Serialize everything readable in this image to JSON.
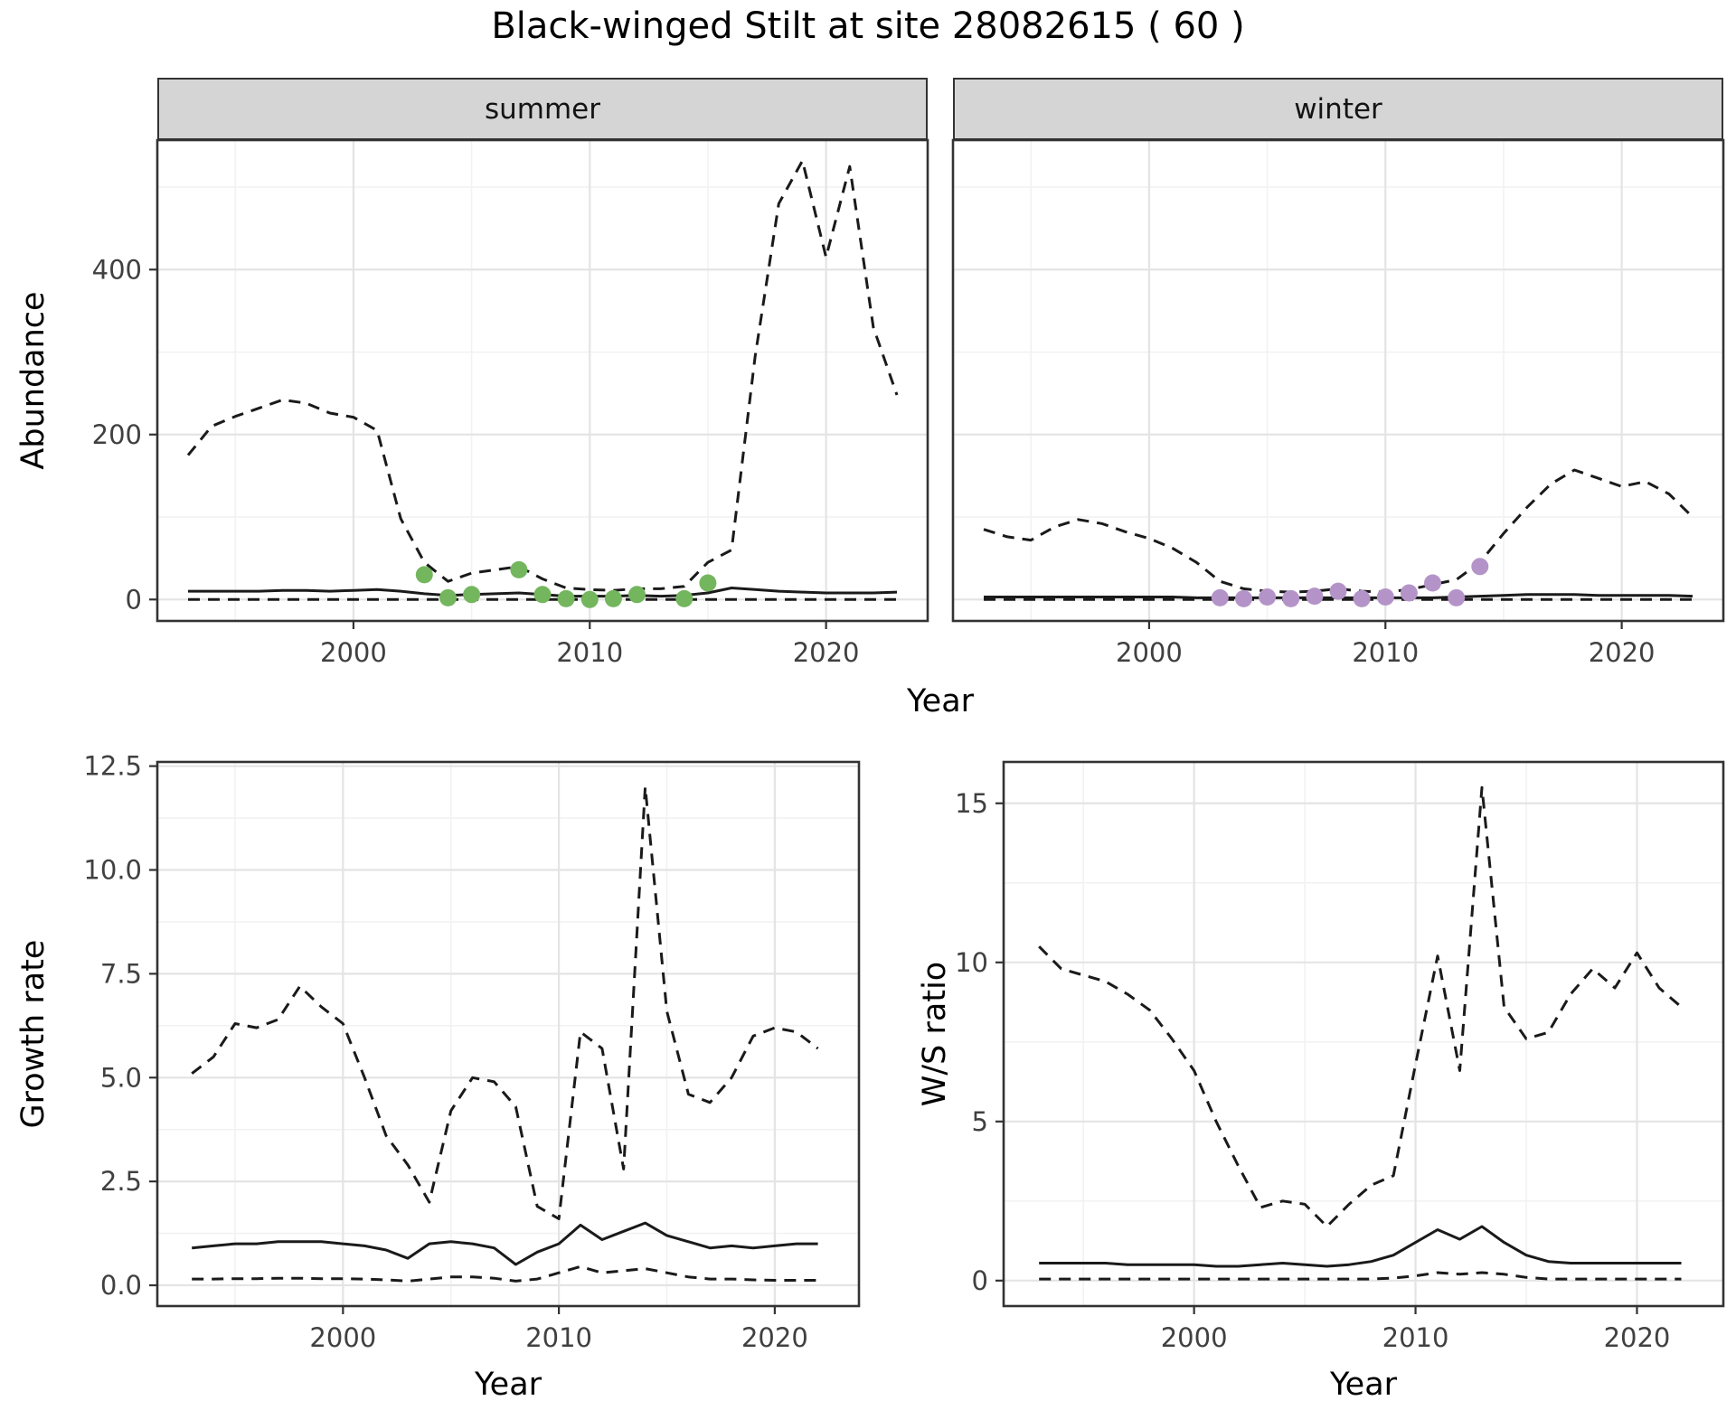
{
  "title": "Black-winged Stilt at site 28082615 ( 60 )",
  "colors": {
    "line": "#1a1a1a",
    "grid_major": "#e4e4e4",
    "grid_minor": "#f2f2f2",
    "panel_border": "#333333",
    "strip_bg": "#d5d5d5",
    "tick_text": "#404040",
    "summer_point": "#74b65e",
    "winter_point": "#b494c8"
  },
  "chart_data": [
    {
      "id": "abundance",
      "type": "line",
      "title": "",
      "xlabel": "Year",
      "ylabel": "Abundance",
      "xlim": [
        1991.7,
        2024.3
      ],
      "ylim": [
        -26,
        557
      ],
      "xticks": [
        2000,
        2010,
        2020
      ],
      "xtick_labels": [
        "2000",
        "2010",
        "2020"
      ],
      "yticks": [
        0,
        200,
        400
      ],
      "ytick_labels": [
        "0",
        "200",
        "400"
      ],
      "grid": true,
      "legend": "none",
      "facets": [
        {
          "label": "summer",
          "point_color": "#74b65e",
          "series": [
            {
              "name": "upper-ci",
              "style": "dashed",
              "x": [
                1993,
                1994,
                1995,
                1996,
                1997,
                1998,
                1999,
                2000,
                2001,
                2002,
                2003,
                2004,
                2005,
                2006,
                2007,
                2008,
                2009,
                2010,
                2011,
                2012,
                2013,
                2014,
                2015,
                2016,
                2017,
                2018,
                2019,
                2020,
                2021,
                2022,
                2023
              ],
              "y": [
                175,
                210,
                222,
                232,
                242,
                238,
                226,
                221,
                205,
                98,
                45,
                22,
                32,
                36,
                40,
                25,
                14,
                12,
                11,
                13,
                13,
                16,
                45,
                60,
                295,
                480,
                532,
                415,
                525,
                330,
                248
              ]
            },
            {
              "name": "median",
              "style": "solid",
              "x": [
                1993,
                1994,
                1995,
                1996,
                1997,
                1998,
                1999,
                2000,
                2001,
                2002,
                2003,
                2004,
                2005,
                2006,
                2007,
                2008,
                2009,
                2010,
                2011,
                2012,
                2013,
                2014,
                2015,
                2016,
                2017,
                2018,
                2019,
                2020,
                2021,
                2022,
                2023
              ],
              "y": [
                10,
                10,
                10,
                10,
                11,
                11,
                10,
                11,
                12,
                10,
                7,
                5,
                6,
                7,
                8,
                6,
                4,
                4,
                4,
                5,
                4,
                5,
                8,
                14,
                12,
                10,
                9,
                8,
                8,
                8,
                9
              ]
            },
            {
              "name": "lower-ci",
              "style": "dashed",
              "x": [
                1993,
                1994,
                1995,
                1996,
                1997,
                1998,
                1999,
                2000,
                2001,
                2002,
                2003,
                2004,
                2005,
                2006,
                2007,
                2008,
                2009,
                2010,
                2011,
                2012,
                2013,
                2014,
                2015,
                2016,
                2017,
                2018,
                2019,
                2020,
                2021,
                2022,
                2023
              ],
              "y": [
                0,
                0,
                0,
                0,
                0,
                0,
                0,
                0,
                0,
                0,
                0,
                0,
                0,
                0,
                0,
                0,
                0,
                0,
                0,
                0,
                0,
                0,
                0,
                0,
                0,
                0,
                0,
                0,
                0,
                0,
                0
              ]
            }
          ],
          "points": {
            "x": [
              2003,
              2004,
              2005,
              2007,
              2008,
              2009,
              2010,
              2011,
              2012,
              2014,
              2015
            ],
            "y": [
              30,
              2,
              6,
              36,
              6,
              1,
              0,
              1,
              6,
              1,
              20
            ]
          }
        },
        {
          "label": "winter",
          "point_color": "#b494c8",
          "series": [
            {
              "name": "upper-ci",
              "style": "dashed",
              "x": [
                1993,
                1994,
                1995,
                1996,
                1997,
                1998,
                1999,
                2000,
                2001,
                2002,
                2003,
                2004,
                2005,
                2006,
                2007,
                2008,
                2009,
                2010,
                2011,
                2012,
                2013,
                2014,
                2015,
                2016,
                2017,
                2018,
                2019,
                2020,
                2021,
                2022,
                2023
              ],
              "y": [
                85,
                76,
                72,
                88,
                97,
                92,
                82,
                74,
                62,
                45,
                22,
                13,
                10,
                9,
                10,
                13,
                10,
                9,
                12,
                18,
                24,
                45,
                80,
                112,
                140,
                157,
                147,
                137,
                143,
                128,
                100
              ]
            },
            {
              "name": "median",
              "style": "solid",
              "x": [
                1993,
                1994,
                1995,
                1996,
                1997,
                1998,
                1999,
                2000,
                2001,
                2002,
                2003,
                2004,
                2005,
                2006,
                2007,
                2008,
                2009,
                2010,
                2011,
                2012,
                2013,
                2014,
                2015,
                2016,
                2017,
                2018,
                2019,
                2020,
                2021,
                2022,
                2023
              ],
              "y": [
                3,
                3,
                3,
                3,
                3,
                3,
                3,
                3,
                3,
                2,
                2,
                2,
                2,
                2,
                2,
                2,
                2,
                2,
                2,
                2,
                3,
                4,
                5,
                6,
                6,
                6,
                5,
                5,
                5,
                5,
                4
              ]
            },
            {
              "name": "lower-ci",
              "style": "dashed",
              "x": [
                1993,
                1994,
                1995,
                1996,
                1997,
                1998,
                1999,
                2000,
                2001,
                2002,
                2003,
                2004,
                2005,
                2006,
                2007,
                2008,
                2009,
                2010,
                2011,
                2012,
                2013,
                2014,
                2015,
                2016,
                2017,
                2018,
                2019,
                2020,
                2021,
                2022,
                2023
              ],
              "y": [
                0,
                0,
                0,
                0,
                0,
                0,
                0,
                0,
                0,
                0,
                0,
                0,
                0,
                0,
                0,
                0,
                0,
                0,
                0,
                0,
                0,
                0,
                0,
                0,
                0,
                0,
                0,
                0,
                0,
                0,
                0
              ]
            }
          ],
          "points": {
            "x": [
              2003,
              2004,
              2005,
              2006,
              2007,
              2008,
              2009,
              2010,
              2011,
              2012,
              2013,
              2014
            ],
            "y": [
              2,
              1,
              3,
              1,
              4,
              10,
              1,
              3,
              8,
              20,
              2,
              40
            ]
          }
        }
      ]
    },
    {
      "id": "growth_rate",
      "type": "line",
      "title": "",
      "xlabel": "Year",
      "ylabel": "Growth rate",
      "xlim": [
        1991.4,
        2023.9
      ],
      "ylim": [
        -0.5,
        12.6
      ],
      "xticks": [
        2000,
        2010,
        2020
      ],
      "xtick_labels": [
        "2000",
        "2010",
        "2020"
      ],
      "yticks": [
        0,
        2.5,
        5,
        7.5,
        10,
        12.5
      ],
      "ytick_labels": [
        "0.0",
        "2.5",
        "5.0",
        "7.5",
        "10.0",
        "12.5"
      ],
      "grid": true,
      "legend": "none",
      "series": [
        {
          "name": "upper-ci",
          "style": "dashed",
          "x": [
            1993,
            1994,
            1995,
            1996,
            1997,
            1998,
            1999,
            2000,
            2001,
            2002,
            2003,
            2004,
            2005,
            2006,
            2007,
            2008,
            2009,
            2010,
            2011,
            2012,
            2013,
            2014,
            2015,
            2016,
            2017,
            2018,
            2019,
            2020,
            2021,
            2022
          ],
          "y": [
            5.1,
            5.5,
            6.3,
            6.2,
            6.4,
            7.2,
            6.7,
            6.3,
            5.0,
            3.6,
            2.9,
            2.0,
            4.2,
            5.0,
            4.9,
            4.3,
            1.9,
            1.6,
            6.1,
            5.7,
            2.8,
            12.0,
            6.6,
            4.6,
            4.4,
            5.0,
            6.0,
            6.2,
            6.1,
            5.7
          ]
        },
        {
          "name": "median",
          "style": "solid",
          "x": [
            1993,
            1994,
            1995,
            1996,
            1997,
            1998,
            1999,
            2000,
            2001,
            2002,
            2003,
            2004,
            2005,
            2006,
            2007,
            2008,
            2009,
            2010,
            2011,
            2012,
            2013,
            2014,
            2015,
            2016,
            2017,
            2018,
            2019,
            2020,
            2021,
            2022
          ],
          "y": [
            0.9,
            0.95,
            1.0,
            1.0,
            1.05,
            1.05,
            1.05,
            1.0,
            0.95,
            0.85,
            0.65,
            1.0,
            1.05,
            1.0,
            0.9,
            0.5,
            0.8,
            1.0,
            1.45,
            1.1,
            1.3,
            1.5,
            1.2,
            1.05,
            0.9,
            0.95,
            0.9,
            0.95,
            1.0,
            1.0
          ]
        },
        {
          "name": "lower-ci",
          "style": "dashed",
          "x": [
            1993,
            1994,
            1995,
            1996,
            1997,
            1998,
            1999,
            2000,
            2001,
            2002,
            2003,
            2004,
            2005,
            2006,
            2007,
            2008,
            2009,
            2010,
            2011,
            2012,
            2013,
            2014,
            2015,
            2016,
            2017,
            2018,
            2019,
            2020,
            2021,
            2022
          ],
          "y": [
            0.15,
            0.15,
            0.16,
            0.16,
            0.17,
            0.17,
            0.16,
            0.16,
            0.15,
            0.13,
            0.1,
            0.15,
            0.2,
            0.2,
            0.17,
            0.1,
            0.15,
            0.3,
            0.45,
            0.3,
            0.35,
            0.4,
            0.3,
            0.2,
            0.15,
            0.15,
            0.13,
            0.12,
            0.12,
            0.12
          ]
        }
      ]
    },
    {
      "id": "ws_ratio",
      "type": "line",
      "title": "",
      "xlabel": "Year",
      "ylabel": "W/S ratio",
      "xlim": [
        1991.4,
        2023.9
      ],
      "ylim": [
        -0.8,
        16.3
      ],
      "xticks": [
        2000,
        2010,
        2020
      ],
      "xtick_labels": [
        "2000",
        "2010",
        "2020"
      ],
      "yticks": [
        0,
        5,
        10,
        15
      ],
      "ytick_labels": [
        "0",
        "5",
        "10",
        "15"
      ],
      "grid": true,
      "legend": "none",
      "series": [
        {
          "name": "upper-ci",
          "style": "dashed",
          "x": [
            1993,
            1994,
            1995,
            1996,
            1997,
            1998,
            1999,
            2000,
            2001,
            2002,
            2003,
            2004,
            2005,
            2006,
            2007,
            2008,
            2009,
            2010,
            2011,
            2012,
            2013,
            2014,
            2015,
            2016,
            2017,
            2018,
            2019,
            2020,
            2021,
            2022
          ],
          "y": [
            10.5,
            9.8,
            9.6,
            9.4,
            9.0,
            8.5,
            7.6,
            6.6,
            5.0,
            3.6,
            2.3,
            2.5,
            2.4,
            1.7,
            2.4,
            3.0,
            3.3,
            6.8,
            10.2,
            6.6,
            15.5,
            8.6,
            7.6,
            7.8,
            9.0,
            9.8,
            9.2,
            10.3,
            9.2,
            8.6
          ]
        },
        {
          "name": "median",
          "style": "solid",
          "x": [
            1993,
            1994,
            1995,
            1996,
            1997,
            1998,
            1999,
            2000,
            2001,
            2002,
            2003,
            2004,
            2005,
            2006,
            2007,
            2008,
            2009,
            2010,
            2011,
            2012,
            2013,
            2014,
            2015,
            2016,
            2017,
            2018,
            2019,
            2020,
            2021,
            2022
          ],
          "y": [
            0.55,
            0.55,
            0.55,
            0.55,
            0.5,
            0.5,
            0.5,
            0.5,
            0.45,
            0.45,
            0.5,
            0.55,
            0.5,
            0.45,
            0.5,
            0.6,
            0.8,
            1.2,
            1.6,
            1.3,
            1.7,
            1.2,
            0.8,
            0.6,
            0.55,
            0.55,
            0.55,
            0.55,
            0.55,
            0.55
          ]
        },
        {
          "name": "lower-ci",
          "style": "dashed",
          "x": [
            1993,
            1994,
            1995,
            1996,
            1997,
            1998,
            1999,
            2000,
            2001,
            2002,
            2003,
            2004,
            2005,
            2006,
            2007,
            2008,
            2009,
            2010,
            2011,
            2012,
            2013,
            2014,
            2015,
            2016,
            2017,
            2018,
            2019,
            2020,
            2021,
            2022
          ],
          "y": [
            0.05,
            0.05,
            0.05,
            0.05,
            0.05,
            0.05,
            0.05,
            0.05,
            0.05,
            0.05,
            0.05,
            0.05,
            0.05,
            0.05,
            0.05,
            0.05,
            0.08,
            0.15,
            0.25,
            0.2,
            0.25,
            0.2,
            0.1,
            0.05,
            0.05,
            0.05,
            0.05,
            0.05,
            0.05,
            0.05
          ]
        }
      ]
    }
  ]
}
